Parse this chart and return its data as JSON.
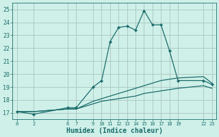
{
  "xlabel": "Humidex (Indice chaleur)",
  "bg_color": "#cef0e8",
  "grid_color": "#b0c8c4",
  "line_color": "#1a6b6b",
  "ylim": [
    16.5,
    25.5
  ],
  "yticks": [
    17,
    18,
    19,
    20,
    21,
    22,
    23,
    24,
    25
  ],
  "xticks": [
    0,
    2,
    6,
    7,
    9,
    10,
    11,
    12,
    13,
    14,
    15,
    16,
    17,
    18,
    19,
    22,
    23
  ],
  "line1_x": [
    0,
    2,
    6,
    7,
    9,
    10,
    11,
    12,
    13,
    14,
    15,
    16,
    17,
    18,
    19,
    22,
    23
  ],
  "line1_y": [
    17.1,
    16.9,
    17.4,
    17.4,
    19.0,
    19.5,
    22.5,
    23.6,
    23.7,
    23.4,
    24.9,
    23.8,
    23.8,
    21.8,
    19.5,
    19.5,
    19.2
  ],
  "line2_x": [
    0,
    2,
    6,
    7,
    9,
    10,
    11,
    12,
    13,
    14,
    15,
    16,
    17,
    18,
    19,
    22,
    23
  ],
  "line2_y": [
    17.1,
    17.1,
    17.3,
    17.3,
    17.9,
    18.1,
    18.3,
    18.5,
    18.7,
    18.9,
    19.1,
    19.3,
    19.5,
    19.6,
    19.7,
    19.8,
    19.3
  ],
  "line3_x": [
    0,
    2,
    6,
    7,
    9,
    10,
    11,
    12,
    13,
    14,
    15,
    16,
    17,
    18,
    19,
    22,
    23
  ],
  "line3_y": [
    17.1,
    17.1,
    17.3,
    17.3,
    17.7,
    17.9,
    18.0,
    18.1,
    18.2,
    18.3,
    18.5,
    18.6,
    18.7,
    18.8,
    18.9,
    19.1,
    18.9
  ]
}
